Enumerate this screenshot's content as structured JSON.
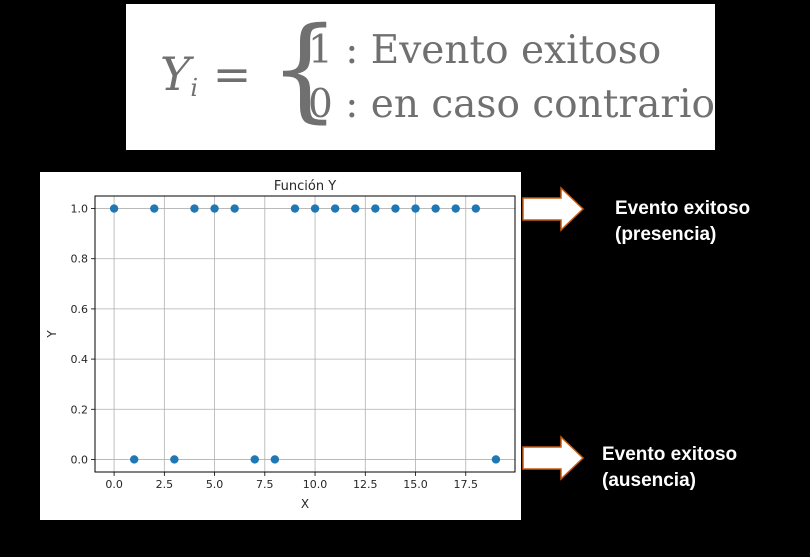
{
  "formula": {
    "lhs_var": "Y",
    "lhs_sub": "i",
    "equals": "=",
    "brace": "{",
    "case1": "1 : Evento exitoso",
    "case2": "0 : en caso contrario"
  },
  "annotations": {
    "top_line1": "Evento exitoso",
    "top_line2": "(presencia)",
    "bottom_line1": "Evento exitoso",
    "bottom_line2": "(ausencia)"
  },
  "colors": {
    "background": "#000000",
    "marker": "#1f77b4",
    "grid": "#b0b0b0",
    "arrow_fill": "#ffffff",
    "arrow_stroke": "#c65a11"
  },
  "chart_data": {
    "type": "scatter",
    "title": "Función Y",
    "xlabel": "X",
    "ylabel": "Y",
    "x": [
      0,
      1,
      2,
      3,
      4,
      5,
      6,
      7,
      8,
      9,
      10,
      11,
      12,
      13,
      14,
      15,
      16,
      17,
      18,
      19
    ],
    "y": [
      1,
      0,
      1,
      0,
      1,
      1,
      1,
      0,
      0,
      1,
      1,
      1,
      1,
      1,
      1,
      1,
      1,
      1,
      1,
      0
    ],
    "xlim": [
      -0.95,
      19.95
    ],
    "ylim": [
      -0.05,
      1.05
    ],
    "xticks": [
      0,
      2.5,
      5,
      7.5,
      10,
      12.5,
      15,
      17.5
    ],
    "xtick_labels": [
      "0.0",
      "2.5",
      "5.0",
      "7.5",
      "10.0",
      "12.5",
      "15.0",
      "17.5"
    ],
    "yticks": [
      0,
      0.2,
      0.4,
      0.6,
      0.8,
      1.0
    ],
    "ytick_labels": [
      "0.0",
      "0.2",
      "0.4",
      "0.6",
      "0.8",
      "1.0"
    ],
    "grid": true,
    "legend": false
  }
}
